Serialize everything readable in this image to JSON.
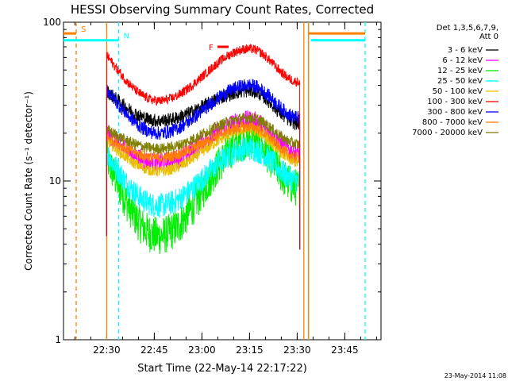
{
  "chart_data": {
    "type": "line",
    "title": "HESSI Observing Summary Count Rates, Corrected",
    "xlabel": "Start Time (22-May-14 22:17:22)",
    "ylabel": "Corrected Count Rate (s⁻¹ detector⁻¹)",
    "y_scale": "log",
    "ylim": [
      1,
      100
    ],
    "xlim_minutes": [
      0,
      100
    ],
    "x_ticks": [
      {
        "label": "22:30",
        "minute": 13.6
      },
      {
        "label": "22:45",
        "minute": 28.6
      },
      {
        "label": "23:00",
        "minute": 43.6
      },
      {
        "label": "23:15",
        "minute": 58.6
      },
      {
        "label": "23:30",
        "minute": 73.6
      },
      {
        "label": "23:45",
        "minute": 88.6
      }
    ],
    "y_ticks": [
      {
        "label": "1",
        "value": 1
      },
      {
        "label": "10",
        "value": 10
      },
      {
        "label": "100",
        "value": 100
      }
    ],
    "legend": {
      "placement": "outside-right",
      "header": [
        "Det 1,3,5,6,7,9,",
        "Att 0"
      ],
      "entries": [
        {
          "name": "3 - 6 keV",
          "color": "#000000"
        },
        {
          "name": "6 - 12 keV",
          "color": "#ff00ff"
        },
        {
          "name": "12 - 25 keV",
          "color": "#00ee00"
        },
        {
          "name": "25 - 50 keV",
          "color": "#00ffff"
        },
        {
          "name": "50 - 100 keV",
          "color": "#e8c000"
        },
        {
          "name": "100 - 300 keV",
          "color": "#ff0000"
        },
        {
          "name": "300 - 800 keV",
          "color": "#0000ff"
        },
        {
          "name": "800 - 7000 keV",
          "color": "#ff8000"
        },
        {
          "name": "7000 - 20000 keV",
          "color": "#808000"
        }
      ]
    },
    "series_profiles": [
      {
        "name": "3 - 6 keV",
        "color": "#000000",
        "base": 24,
        "peak": 37,
        "start": 37,
        "end": 23,
        "noise": 0.1
      },
      {
        "name": "6 - 12 keV",
        "color": "#ff00ff",
        "base": 13,
        "peak": 24,
        "start": 20,
        "end": 15,
        "noise": 0.15
      },
      {
        "name": "12 - 25 keV",
        "color": "#00ee00",
        "base": 4.5,
        "peak": 18,
        "start": 14,
        "end": 9,
        "noise": 0.28
      },
      {
        "name": "25 - 50 keV",
        "color": "#00ffff",
        "base": 7,
        "peak": 16,
        "start": 15,
        "end": 10,
        "noise": 0.18
      },
      {
        "name": "50 - 100 keV",
        "color": "#e8c000",
        "base": 11.5,
        "peak": 21,
        "start": 18,
        "end": 13,
        "noise": 0.08
      },
      {
        "name": "100 - 300 keV",
        "color": "#ff0000",
        "base": 32,
        "peak": 68,
        "start": 62,
        "end": 42,
        "noise": 0.07
      },
      {
        "name": "300 - 800 keV",
        "color": "#0000ff",
        "base": 20,
        "peak": 40,
        "start": 38,
        "end": 25,
        "noise": 0.1
      },
      {
        "name": "800 - 7000 keV",
        "color": "#ff8000",
        "base": 14,
        "peak": 22,
        "start": 19,
        "end": 14,
        "noise": 0.08
      },
      {
        "name": "7000 - 20000 keV",
        "color": "#808000",
        "base": 16,
        "peak": 25,
        "start": 21,
        "end": 17,
        "noise": 0.08
      }
    ],
    "data_window_minutes": [
      13.6,
      74.4
    ],
    "flags": [
      {
        "label": "S",
        "color": "#ff8000",
        "minute": 4.0,
        "bar_value": 85,
        "bar_start_minute": 0,
        "bar_end_minute": 4.0,
        "resume_minute": 77.2,
        "resume_end_minute": 95.0
      },
      {
        "label": "N",
        "color": "#00ffff",
        "minute": 17.4,
        "bar_value": 77,
        "bar_start_minute": 0,
        "bar_end_minute": 17.4,
        "resume_minute": 77.9,
        "resume_end_minute": 95.0
      },
      {
        "label": "F",
        "color": "#ff0000",
        "minute": 48.5,
        "bar_value": 70,
        "bar_start_minute": 48.5,
        "bar_end_minute": 52.0
      }
    ],
    "vertical_lines": [
      {
        "color": "#ff8000",
        "minute": 4.0,
        "style": "dashed"
      },
      {
        "color": "#00ffff",
        "minute": 17.4,
        "style": "dashed"
      },
      {
        "color": "#ff8000",
        "minute": 13.6,
        "style": "solid"
      },
      {
        "color": "#ff8000",
        "minute": 75.7,
        "style": "solid"
      },
      {
        "color": "#00ffff",
        "minute": 77.1,
        "style": "solid"
      },
      {
        "color": "#00ffff",
        "minute": 95.0,
        "style": "dashed"
      },
      {
        "color": "#ff8000",
        "minute": 77.2,
        "style": "solid"
      }
    ],
    "footer_timestamp": "23-May-2014 11:08"
  }
}
